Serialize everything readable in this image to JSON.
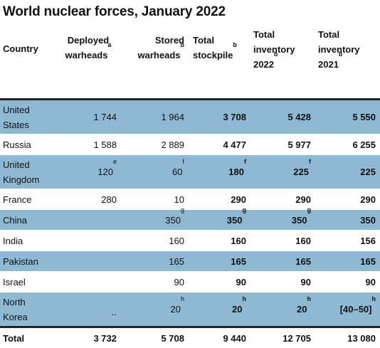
{
  "title": "World nuclear forces, January 2022",
  "headers": {
    "country": "Country",
    "deployed": "Deployed warheads",
    "deployed_sup": "a",
    "stored": "Stored warheads",
    "stored_sup": "b",
    "total": "Total stockpile",
    "total_sup": "b",
    "inv2022": "Total inventory 2022",
    "inv2022_sup": "b",
    "inv2021": "Total inventory 2021",
    "inv2021_sup": "b"
  },
  "rows": [
    {
      "country": "United States",
      "deployed": "1 744",
      "deployed_sup": "",
      "stored": "1 964",
      "stored_sup": "",
      "total": "3 708",
      "total_sup": "",
      "inv2022": "5 428",
      "inv2022_sup": "",
      "inv2021": "5 550",
      "inv2021_sup": ""
    },
    {
      "country": "Russia",
      "deployed": "1 588",
      "deployed_sup": "",
      "stored": "2 889",
      "stored_sup": "",
      "total": "4 477",
      "total_sup": "",
      "inv2022": "5 977",
      "inv2022_sup": "",
      "inv2021": "6 255",
      "inv2021_sup": ""
    },
    {
      "country": "United Kingdom",
      "deployed": "120",
      "deployed_sup": "e",
      "stored": "60",
      "stored_sup": "f",
      "total": "180",
      "total_sup": "f",
      "inv2022": "225",
      "inv2022_sup": "f",
      "inv2021": "225",
      "inv2021_sup": ""
    },
    {
      "country": "France",
      "deployed": "280",
      "deployed_sup": "",
      "stored": "10",
      "stored_sup": "",
      "total": "290",
      "total_sup": "",
      "inv2022": "290",
      "inv2022_sup": "",
      "inv2021": "290",
      "inv2021_sup": ""
    },
    {
      "country": "China",
      "deployed": "",
      "deployed_sup": "",
      "stored": "350",
      "stored_sup": "g",
      "total": "350",
      "total_sup": "g",
      "inv2022": "350",
      "inv2022_sup": "g",
      "inv2021": "350",
      "inv2021_sup": ""
    },
    {
      "country": "India",
      "deployed": "",
      "deployed_sup": "",
      "stored": "160",
      "stored_sup": "",
      "total": "160",
      "total_sup": "",
      "inv2022": "160",
      "inv2022_sup": "",
      "inv2021": "156",
      "inv2021_sup": ""
    },
    {
      "country": "Pakistan",
      "deployed": "",
      "deployed_sup": "",
      "stored": "165",
      "stored_sup": "",
      "total": "165",
      "total_sup": "",
      "inv2022": "165",
      "inv2022_sup": "",
      "inv2021": "165",
      "inv2021_sup": ""
    },
    {
      "country": "Israel",
      "deployed": "",
      "deployed_sup": "",
      "stored": "90",
      "stored_sup": "",
      "total": "90",
      "total_sup": "",
      "inv2022": "90",
      "inv2022_sup": "",
      "inv2021": "90",
      "inv2021_sup": ""
    },
    {
      "country": "North Korea",
      "deployed": "..",
      "deployed_sup": "",
      "stored": "20",
      "stored_sup": "h",
      "total": "20",
      "total_sup": "h",
      "inv2022": "20",
      "inv2022_sup": "h",
      "inv2021": "[40–50]",
      "inv2021_sup": "h"
    }
  ],
  "total": {
    "label": "Total",
    "deployed": "3 732",
    "stored": "5 708",
    "total": "9 440",
    "inv2022": "12 705",
    "inv2021": "13 080"
  },
  "colors": {
    "row_shade": "#8fb8d3",
    "rule": "#222222"
  }
}
